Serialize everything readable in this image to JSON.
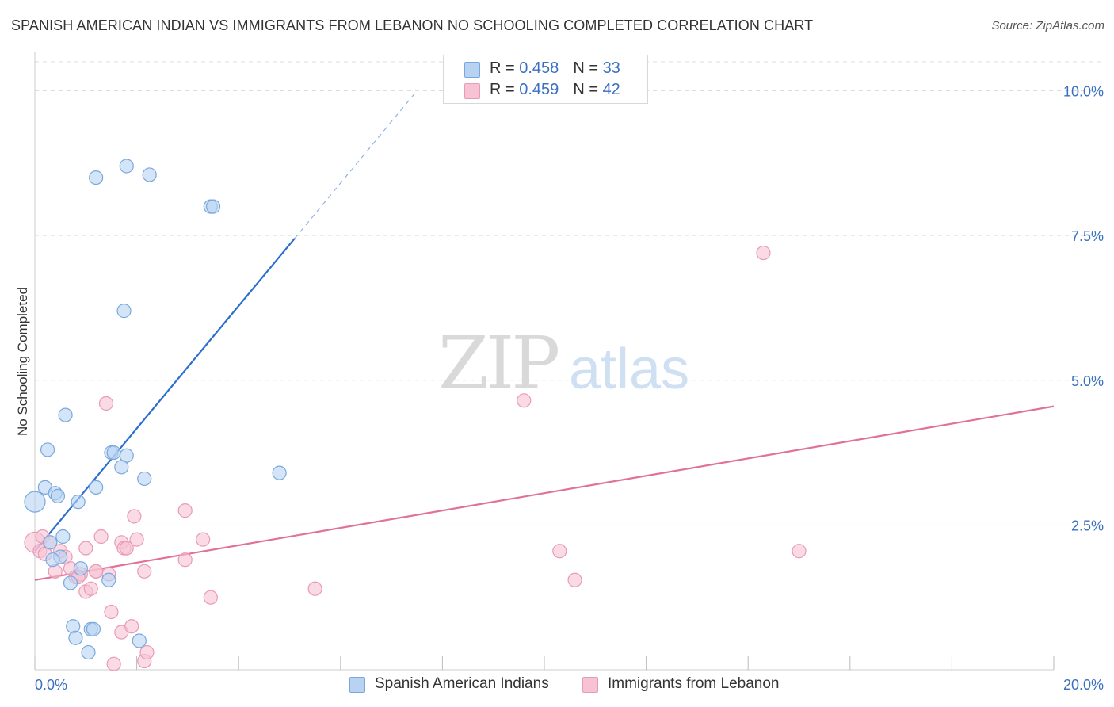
{
  "title": "SPANISH AMERICAN INDIAN VS IMMIGRANTS FROM LEBANON NO SCHOOLING COMPLETED CORRELATION CHART",
  "source": "Source: ZipAtlas.com",
  "watermark": {
    "zip": "ZIP",
    "atlas": "atlas"
  },
  "legend": {
    "rows": [
      {
        "r_label": "R = ",
        "r_value": "0.458",
        "n_label": "N = ",
        "n_value": "33"
      },
      {
        "r_label": "R = ",
        "r_value": "0.459",
        "n_label": "N = ",
        "n_value": "42"
      }
    ]
  },
  "colors": {
    "blue_fill": "#b8d3f2",
    "blue_stroke": "#7aa8de",
    "blue_line": "#2a6fcc",
    "pink_fill": "#f7c3d4",
    "pink_stroke": "#e99ab5",
    "pink_line": "#e0719b",
    "tick_label": "#3a70c0",
    "grid": "#dddddd"
  },
  "chart_data": {
    "type": "scatter",
    "title": "SPANISH AMERICAN INDIAN VS IMMIGRANTS FROM LEBANON NO SCHOOLING COMPLETED CORRELATION CHART",
    "xlabel": "",
    "ylabel": "No Schooling Completed",
    "xlim": [
      0,
      20
    ],
    "ylim": [
      0,
      10.5
    ],
    "x_tick_labels": [
      "0.0%",
      "20.0%"
    ],
    "y_ticks": [
      2.5,
      5.0,
      7.5,
      10.0
    ],
    "y_tick_labels": [
      "2.5%",
      "5.0%",
      "7.5%",
      "10.0%"
    ],
    "grid": true,
    "legend_position": "top-center",
    "series": [
      {
        "name": "Spanish American Indians",
        "r": 0.458,
        "n": 33,
        "points": [
          [
            0.0,
            2.9
          ],
          [
            0.2,
            3.15
          ],
          [
            0.4,
            3.05
          ],
          [
            0.45,
            3.0
          ],
          [
            0.25,
            3.8
          ],
          [
            0.6,
            4.4
          ],
          [
            0.55,
            2.3
          ],
          [
            0.3,
            2.2
          ],
          [
            0.5,
            1.95
          ],
          [
            0.35,
            1.9
          ],
          [
            0.85,
            2.9
          ],
          [
            1.2,
            3.15
          ],
          [
            1.5,
            3.75
          ],
          [
            1.55,
            3.75
          ],
          [
            1.8,
            3.7
          ],
          [
            1.7,
            3.5
          ],
          [
            2.15,
            3.3
          ],
          [
            4.8,
            3.4
          ],
          [
            0.9,
            1.75
          ],
          [
            0.7,
            1.5
          ],
          [
            1.45,
            1.55
          ],
          [
            0.75,
            0.75
          ],
          [
            1.1,
            0.7
          ],
          [
            1.15,
            0.7
          ],
          [
            0.8,
            0.55
          ],
          [
            2.05,
            0.5
          ],
          [
            1.05,
            0.3
          ],
          [
            1.2,
            8.5
          ],
          [
            1.8,
            8.7
          ],
          [
            2.25,
            8.55
          ],
          [
            3.45,
            8.0
          ],
          [
            3.5,
            8.0
          ],
          [
            1.75,
            6.2
          ]
        ],
        "trend": {
          "x0": 0.0,
          "y0": 2.05,
          "x1": 5.1,
          "y1": 7.45,
          "dashed_to_x": 7.5,
          "dashed_to_y": 10.0
        }
      },
      {
        "name": "Immigrants from Lebanon",
        "r": 0.459,
        "n": 42,
        "points": [
          [
            0.0,
            2.2
          ],
          [
            0.1,
            2.05
          ],
          [
            0.15,
            2.3
          ],
          [
            0.2,
            2.0
          ],
          [
            0.3,
            2.2
          ],
          [
            0.5,
            2.05
          ],
          [
            0.4,
            1.7
          ],
          [
            0.6,
            1.95
          ],
          [
            0.7,
            1.75
          ],
          [
            0.8,
            1.6
          ],
          [
            0.9,
            1.65
          ],
          [
            1.0,
            2.1
          ],
          [
            1.2,
            1.7
          ],
          [
            1.3,
            2.3
          ],
          [
            1.45,
            1.65
          ],
          [
            1.0,
            1.35
          ],
          [
            1.1,
            1.4
          ],
          [
            1.5,
            1.0
          ],
          [
            1.7,
            2.2
          ],
          [
            1.75,
            2.1
          ],
          [
            1.95,
            2.65
          ],
          [
            2.0,
            2.25
          ],
          [
            2.15,
            1.7
          ],
          [
            2.95,
            2.75
          ],
          [
            2.95,
            1.9
          ],
          [
            3.3,
            2.25
          ],
          [
            3.45,
            1.25
          ],
          [
            5.5,
            1.4
          ],
          [
            1.4,
            4.6
          ],
          [
            1.7,
            0.65
          ],
          [
            1.9,
            0.75
          ],
          [
            2.15,
            0.15
          ],
          [
            2.2,
            0.3
          ],
          [
            1.55,
            0.1
          ],
          [
            9.6,
            4.65
          ],
          [
            10.3,
            2.05
          ],
          [
            10.6,
            1.55
          ],
          [
            14.3,
            7.2
          ],
          [
            15.0,
            2.05
          ],
          [
            1.8,
            2.1
          ],
          [
            0.85,
            1.6
          ],
          [
            1.2,
            1.7
          ]
        ],
        "trend": {
          "x0": 0.0,
          "y0": 1.55,
          "x1": 20.0,
          "y1": 4.55
        }
      }
    ]
  }
}
